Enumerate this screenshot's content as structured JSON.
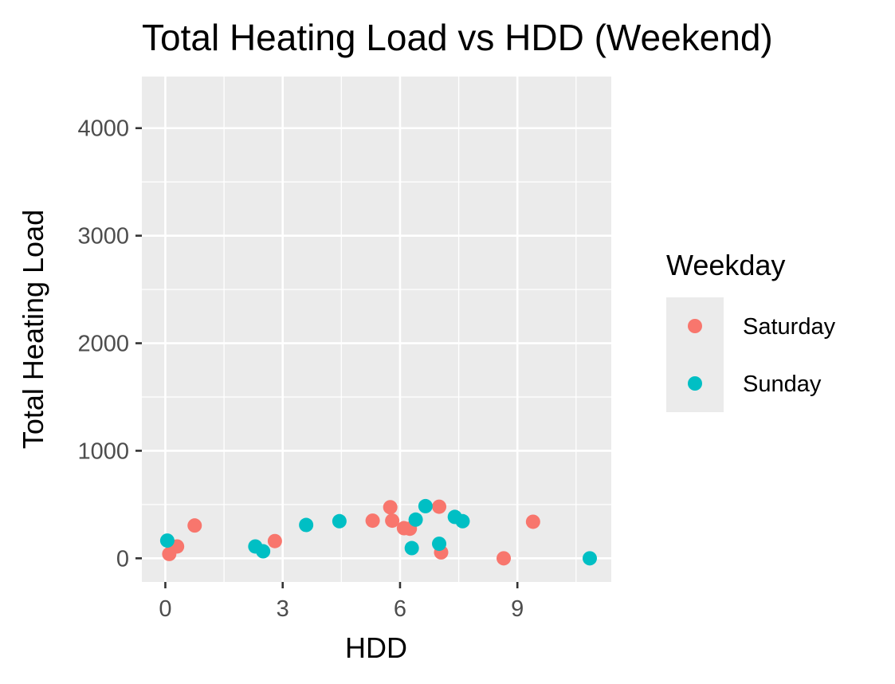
{
  "chart_data": {
    "type": "scatter",
    "title": "Total Heating Load vs HDD (Weekend)",
    "xlabel": "HDD",
    "ylabel": "Total Heating Load",
    "xlim": [
      -0.6,
      11.4
    ],
    "ylim": [
      -220,
      4480
    ],
    "x_ticks": [
      0,
      3,
      6,
      9
    ],
    "x_tick_labels": [
      "0",
      "3",
      "6",
      "9"
    ],
    "y_ticks": [
      0,
      1000,
      2000,
      3000,
      4000
    ],
    "y_tick_labels": [
      "0",
      "1000",
      "2000",
      "3000",
      "4000"
    ],
    "grid": true,
    "legend": {
      "title": "Weekday",
      "position": "right"
    },
    "series": [
      {
        "name": "Saturday",
        "color": "#F8766D",
        "points": [
          {
            "x": 0.1,
            "y": 40
          },
          {
            "x": 0.3,
            "y": 110
          },
          {
            "x": 0.75,
            "y": 305
          },
          {
            "x": 2.8,
            "y": 160
          },
          {
            "x": 5.3,
            "y": 350
          },
          {
            "x": 5.75,
            "y": 475
          },
          {
            "x": 5.8,
            "y": 350
          },
          {
            "x": 6.1,
            "y": 280
          },
          {
            "x": 6.25,
            "y": 275
          },
          {
            "x": 7.0,
            "y": 480
          },
          {
            "x": 7.05,
            "y": 55
          },
          {
            "x": 8.65,
            "y": 0
          },
          {
            "x": 9.4,
            "y": 340
          }
        ]
      },
      {
        "name": "Sunday",
        "color": "#00BFC4",
        "points": [
          {
            "x": 0.05,
            "y": 165
          },
          {
            "x": 2.3,
            "y": 110
          },
          {
            "x": 2.5,
            "y": 65
          },
          {
            "x": 3.6,
            "y": 310
          },
          {
            "x": 4.45,
            "y": 345
          },
          {
            "x": 6.3,
            "y": 95
          },
          {
            "x": 6.4,
            "y": 360
          },
          {
            "x": 6.65,
            "y": 485
          },
          {
            "x": 7.0,
            "y": 135
          },
          {
            "x": 7.4,
            "y": 385
          },
          {
            "x": 7.6,
            "y": 345
          },
          {
            "x": 10.85,
            "y": 0
          }
        ]
      }
    ]
  }
}
